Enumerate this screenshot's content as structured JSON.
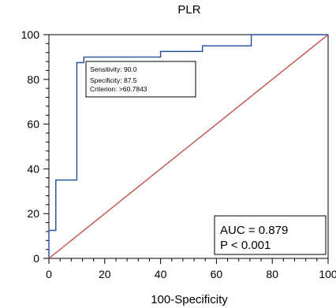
{
  "chart_data": {
    "type": "line",
    "title": "PLR",
    "xlabel": "100-Specificity",
    "ylabel": "",
    "xlim": [
      0,
      100
    ],
    "ylim": [
      0,
      100
    ],
    "xticks": [
      "0",
      "20",
      "40",
      "60",
      "80",
      "100"
    ],
    "yticks": [
      "0",
      "20",
      "40",
      "60",
      "80",
      "100"
    ],
    "grid": false,
    "series": [
      {
        "type": "step",
        "color": "#1f4e9a",
        "x": [
          0,
          0,
          2.5,
          2.5,
          10,
          10,
          12.5,
          12.5,
          40,
          40,
          55,
          55,
          72.5,
          72.5,
          100
        ],
        "y": [
          0,
          12.5,
          12.5,
          35,
          35,
          87.5,
          87.5,
          90,
          90,
          92.5,
          92.5,
          95,
          95,
          100,
          100
        ]
      },
      {
        "type": "line",
        "color": "#c0504d",
        "x": [
          0,
          100
        ],
        "y": [
          0,
          100
        ]
      }
    ],
    "annotations": {
      "criterion_box": {
        "sensitivity": "Sensitivity: 90.0",
        "specificity": "Specificity: 87.5",
        "criterion": "Criterion:  >60.7843"
      },
      "auc_box": {
        "auc": "AUC  =  0.879",
        "p": "P < 0.001"
      }
    }
  }
}
